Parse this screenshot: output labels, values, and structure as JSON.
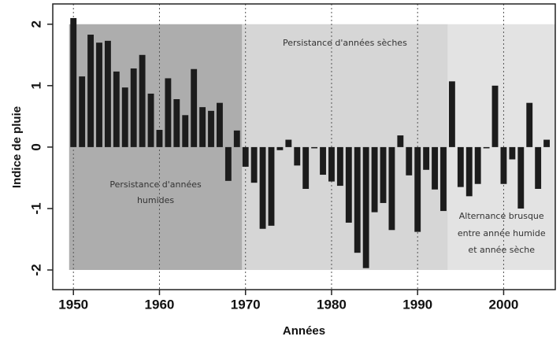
{
  "chart_data": {
    "type": "bar",
    "x_label": "Années",
    "y_label": "Indice de pluie",
    "x": [
      1950,
      1951,
      1952,
      1953,
      1954,
      1955,
      1956,
      1957,
      1958,
      1959,
      1960,
      1961,
      1962,
      1963,
      1964,
      1965,
      1966,
      1967,
      1968,
      1969,
      1970,
      1971,
      1972,
      1973,
      1974,
      1975,
      1976,
      1977,
      1978,
      1979,
      1980,
      1981,
      1982,
      1983,
      1984,
      1985,
      1986,
      1987,
      1988,
      1989,
      1990,
      1991,
      1992,
      1993,
      1994,
      1995,
      1996,
      1997,
      1998,
      1999,
      2000,
      2001,
      2002,
      2003,
      2004,
      2005
    ],
    "values": [
      2.1,
      1.15,
      1.83,
      1.7,
      1.73,
      1.23,
      0.97,
      1.28,
      1.5,
      0.87,
      0.28,
      1.12,
      0.78,
      0.52,
      1.27,
      0.65,
      0.59,
      0.72,
      -0.55,
      0.27,
      -0.32,
      -0.58,
      -1.33,
      -1.28,
      -0.05,
      0.12,
      -0.3,
      -0.68,
      -0.02,
      -0.45,
      -0.56,
      -0.63,
      -1.23,
      -1.72,
      -1.97,
      -1.06,
      -0.91,
      -1.35,
      0.19,
      -0.46,
      -1.38,
      -0.37,
      -0.69,
      -1.04,
      1.07,
      -0.65,
      -0.8,
      -0.6,
      -0.02,
      1.0,
      -0.6,
      -0.2,
      -1.0,
      0.72,
      -0.68,
      0.12
    ],
    "color": "#1c1c1c",
    "xlim": [
      1947.6,
      2006.0
    ],
    "ylim": [
      -2.32,
      2.33
    ],
    "xticks": [
      1950,
      1960,
      1970,
      1980,
      1990,
      2000
    ],
    "yticks": [
      -2,
      -1,
      0,
      1,
      2
    ],
    "grid": "x",
    "periods": [
      {
        "label_lines": [
          "Persistance d'années",
          "humides"
        ],
        "start": 1949.5,
        "end": 1969.6,
        "color": "#adadad"
      },
      {
        "label_lines": [
          "Persistance d'années sèches"
        ],
        "start": 1969.6,
        "end": 1993.5,
        "color": "#d6d6d6"
      },
      {
        "label_lines": [
          "Alternance brusque",
          "entre année humide",
          "et année sèche"
        ],
        "start": 1993.5,
        "end": 2006.0,
        "color": "#e3e3e3"
      }
    ]
  }
}
